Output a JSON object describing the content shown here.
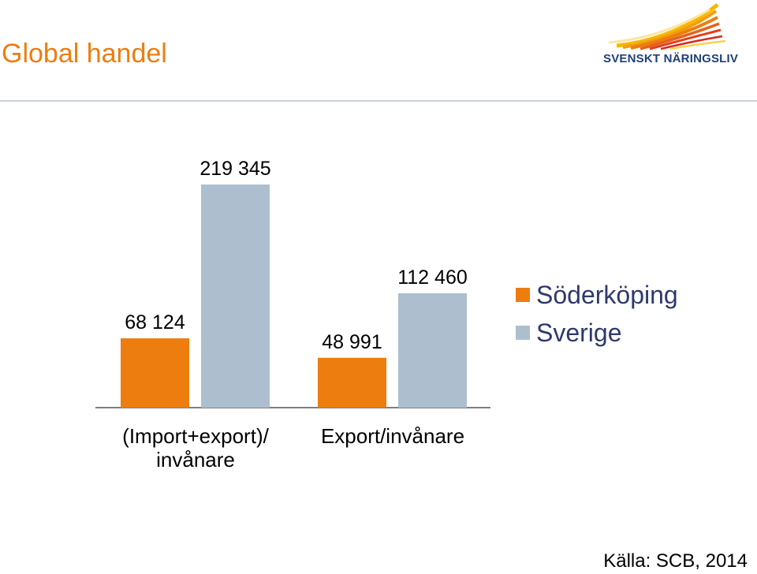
{
  "slide": {
    "title": "Global handel",
    "source": "Källa: SCB, 2014"
  },
  "logo": {
    "text": "SVENSKT NÄRINGSLIV",
    "icon": "sunburst-logo-icon"
  },
  "colors": {
    "title": "#ed7d0e",
    "soderkoping": "#ed7d0e",
    "sverige": "#adbfce",
    "legend_text": "#2e3a6a",
    "rule": "#c9d1d9"
  },
  "chart_data": {
    "type": "bar",
    "categories": [
      "(Import+export)/\ninvånare",
      "Export/invånare"
    ],
    "series": [
      {
        "name": "Söderköping",
        "values": [
          68124,
          48991
        ],
        "labels": [
          "68 124",
          "48 991"
        ],
        "color": "#ed7d0e"
      },
      {
        "name": "Sverige",
        "values": [
          219345,
          112460
        ],
        "labels": [
          "219 345",
          "112 460"
        ],
        "color": "#adbfce"
      }
    ],
    "ylim": [
      0,
      250000
    ],
    "grid": false,
    "legend_position": "right"
  }
}
